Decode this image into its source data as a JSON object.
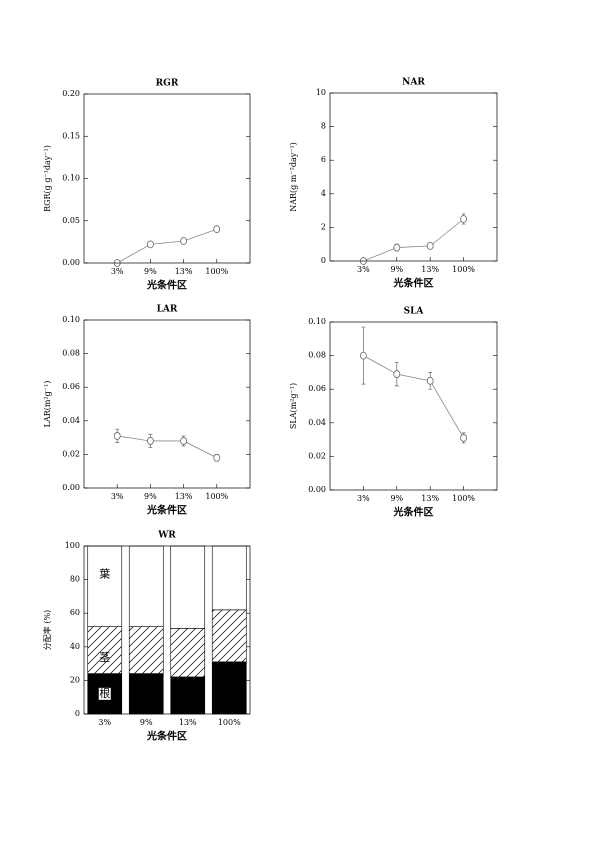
{
  "chart_data": [
    {
      "type": "line",
      "title": "RGR",
      "ylabel": "RGR(g g⁻¹day⁻¹)",
      "xlabel": "光条件区",
      "categories": [
        "3%",
        "9%",
        "13%",
        "100%"
      ],
      "values": [
        0.0,
        0.022,
        0.026,
        0.04
      ],
      "errors": [
        0.001,
        0.003,
        0.002,
        0.002
      ],
      "color": "#888888",
      "ylim": [
        0,
        0.2
      ],
      "yticks": [
        {
          "value": 0,
          "label": "0.00"
        },
        {
          "value": 0.05,
          "label": "0.05"
        },
        {
          "value": 0.1,
          "label": "0.10"
        },
        {
          "value": 0.15,
          "label": "0.15"
        },
        {
          "value": 0.2,
          "label": "0.20"
        }
      ]
    },
    {
      "type": "line",
      "title": "NAR",
      "ylabel": "NAR(g m⁻²day⁻¹)",
      "xlabel": "光条件区",
      "categories": [
        "3%",
        "9%",
        "13%",
        "100%"
      ],
      "values": [
        0.0,
        0.8,
        0.9,
        2.5
      ],
      "errors": [
        0.1,
        0.2,
        0.15,
        0.3
      ],
      "color": "#888888",
      "ylim": [
        0,
        10
      ],
      "yticks": [
        0,
        2,
        4,
        6,
        8,
        10
      ]
    },
    {
      "type": "line",
      "title": "LAR",
      "ylabel": "LAR(m²g⁻¹)",
      "xlabel": "光条件区",
      "categories": [
        "3%",
        "9%",
        "13%",
        "100%"
      ],
      "values": [
        0.031,
        0.028,
        0.028,
        0.018
      ],
      "errors": [
        0.004,
        0.004,
        0.003,
        0.002
      ],
      "color": "#888888",
      "ylim": [
        0,
        0.1
      ],
      "yticks": [
        {
          "value": 0,
          "label": "0.00"
        },
        {
          "value": 0.02,
          "label": "0.02"
        },
        {
          "value": 0.04,
          "label": "0.04"
        },
        {
          "value": 0.06,
          "label": "0.06"
        },
        {
          "value": 0.08,
          "label": "0.08"
        },
        {
          "value": 0.1,
          "label": "0.10"
        }
      ]
    },
    {
      "type": "line",
      "title": "SLA",
      "ylabel": "SLA(m²g⁻¹)",
      "xlabel": "光条件区",
      "categories": [
        "3%",
        "9%",
        "13%",
        "100%"
      ],
      "values": [
        0.08,
        0.069,
        0.065,
        0.031
      ],
      "errors": [
        0.017,
        0.007,
        0.005,
        0.003
      ],
      "color": "#888888",
      "ylim": [
        0,
        0.1
      ],
      "yticks": [
        {
          "value": 0,
          "label": "0.00"
        },
        {
          "value": 0.02,
          "label": "0.02"
        },
        {
          "value": 0.04,
          "label": "0.04"
        },
        {
          "value": 0.06,
          "label": "0.06"
        },
        {
          "value": 0.08,
          "label": "0.08"
        },
        {
          "value": 0.1,
          "label": "0.10"
        }
      ]
    },
    {
      "type": "stacked_bar",
      "title": "WR",
      "ylabel": "分配率 (%)",
      "xlabel": "光条件区",
      "categories": [
        "3%",
        "9%",
        "13%",
        "100%"
      ],
      "ylim": [
        0,
        100
      ],
      "yticks": [
        0,
        20,
        40,
        60,
        80,
        100
      ],
      "series": [
        {
          "name": "根",
          "color": "#000000",
          "values": [
            24,
            24,
            22,
            31
          ]
        },
        {
          "name": "茎",
          "color": "#ffffff",
          "hatch": true,
          "values": [
            28,
            28,
            29,
            31
          ]
        },
        {
          "name": "葉",
          "color": "#ffffff",
          "values": [
            48,
            48,
            49,
            38
          ]
        }
      ]
    }
  ]
}
